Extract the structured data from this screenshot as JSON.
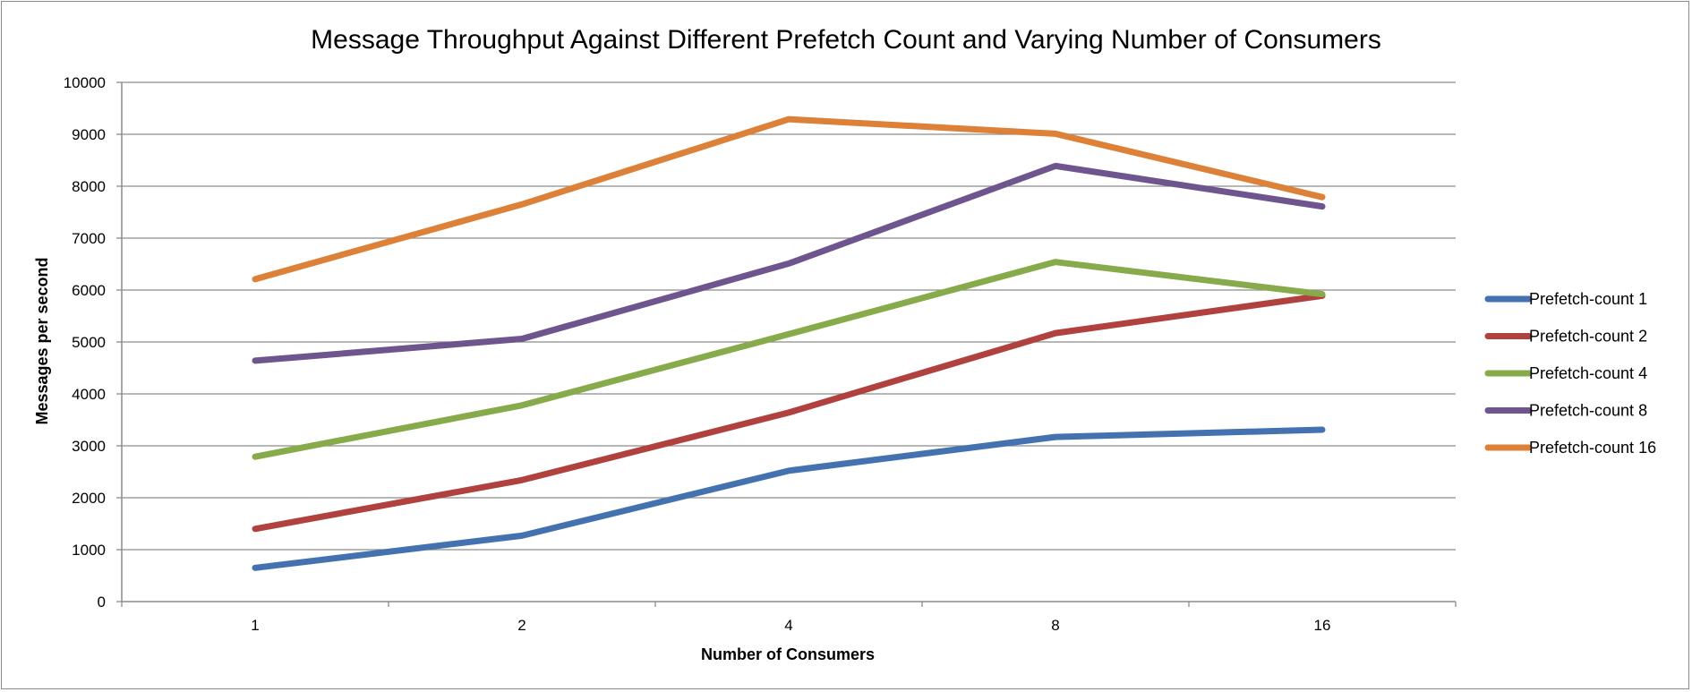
{
  "chart_data": {
    "type": "line",
    "title": "Message Throughput Against Different Prefetch Count and Varying Number of Consumers",
    "xlabel": "Number of Consumers",
    "ylabel": "Messages per second",
    "categories": [
      "1",
      "2",
      "4",
      "8",
      "16"
    ],
    "ylim": [
      0,
      10000
    ],
    "yticks": [
      0,
      1000,
      2000,
      3000,
      4000,
      5000,
      6000,
      7000,
      8000,
      9000,
      10000
    ],
    "grid": true,
    "legend_position": "right",
    "series": [
      {
        "name": "Prefetch-count 1",
        "color": "#4472b0",
        "values": [
          650,
          1270,
          2520,
          3170,
          3310
        ]
      },
      {
        "name": "Prefetch-count 2",
        "color": "#b0413e",
        "values": [
          1400,
          2340,
          3640,
          5170,
          5890
        ]
      },
      {
        "name": "Prefetch-count 4",
        "color": "#87aa4a",
        "values": [
          2790,
          3780,
          5150,
          6540,
          5920
        ]
      },
      {
        "name": "Prefetch-count 8",
        "color": "#6f558e",
        "values": [
          4640,
          5060,
          6510,
          8390,
          7610
        ]
      },
      {
        "name": "Prefetch-count 16",
        "color": "#dd8038",
        "values": [
          6210,
          7650,
          9290,
          9010,
          7790
        ]
      }
    ]
  }
}
